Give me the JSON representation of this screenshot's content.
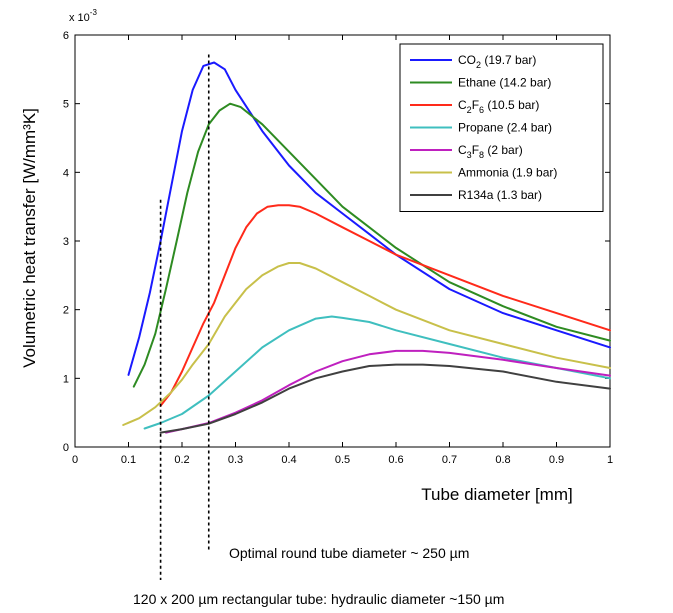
{
  "chart_data": {
    "type": "line",
    "title": "",
    "xlabel": "Tube diameter [mm]",
    "ylabel": "Volumetric heat transfer  [W/mm³K]",
    "y_exponent_label": "x 10",
    "y_exponent_power": "-3",
    "xlim": [
      0,
      1
    ],
    "ylim": [
      0,
      0.006
    ],
    "x_ticks": [
      0,
      0.1,
      0.2,
      0.3,
      0.4,
      0.5,
      0.6,
      0.7,
      0.8,
      0.9,
      1
    ],
    "x_tick_labels": [
      "0",
      "0.1",
      "0.2",
      "0.3",
      "0.4",
      "0.5",
      "0.6",
      "0.7",
      "0.8",
      "0.9",
      "1"
    ],
    "y_ticks": [
      0,
      0.001,
      0.002,
      0.003,
      0.004,
      0.005,
      0.006
    ],
    "y_tick_labels": [
      "0",
      "1",
      "2",
      "3",
      "4",
      "5",
      "6"
    ],
    "grid": false,
    "legend_position": "top-right",
    "series": [
      {
        "name": "CO2 (19.7 bar)",
        "legend_parts": [
          [
            "CO",
            ""
          ],
          [
            "2",
            "sub"
          ],
          [
            " (19.7 bar)",
            ""
          ]
        ],
        "color": "#1a1aff",
        "x": [
          0.1,
          0.12,
          0.14,
          0.16,
          0.18,
          0.2,
          0.22,
          0.24,
          0.26,
          0.28,
          0.3,
          0.35,
          0.4,
          0.45,
          0.5,
          0.55,
          0.6,
          0.7,
          0.8,
          0.9,
          1.0
        ],
        "y": [
          0.00105,
          0.0016,
          0.00225,
          0.003,
          0.0038,
          0.0046,
          0.0052,
          0.00555,
          0.0056,
          0.0055,
          0.0052,
          0.0046,
          0.0041,
          0.0037,
          0.0034,
          0.0031,
          0.0028,
          0.0023,
          0.00195,
          0.0017,
          0.00145
        ]
      },
      {
        "name": "Ethane (14.2 bar)",
        "legend_parts": [
          [
            "Ethane (14.2 bar)",
            ""
          ]
        ],
        "color": "#2e8b22",
        "x": [
          0.11,
          0.13,
          0.15,
          0.17,
          0.19,
          0.21,
          0.23,
          0.25,
          0.27,
          0.29,
          0.31,
          0.35,
          0.4,
          0.45,
          0.5,
          0.55,
          0.6,
          0.7,
          0.8,
          0.9,
          1.0
        ],
        "y": [
          0.00088,
          0.0012,
          0.00165,
          0.0023,
          0.003,
          0.0037,
          0.0043,
          0.0047,
          0.0049,
          0.005,
          0.00495,
          0.0047,
          0.0043,
          0.0039,
          0.0035,
          0.0032,
          0.0029,
          0.0024,
          0.00205,
          0.00175,
          0.00155
        ]
      },
      {
        "name": "C2F6 (10.5 bar)",
        "legend_parts": [
          [
            "C",
            ""
          ],
          [
            "2",
            "sub"
          ],
          [
            "F",
            ""
          ],
          [
            "6",
            "sub"
          ],
          [
            " (10.5 bar)",
            ""
          ]
        ],
        "color": "#ff2a1a",
        "x": [
          0.16,
          0.18,
          0.2,
          0.22,
          0.24,
          0.26,
          0.28,
          0.3,
          0.32,
          0.34,
          0.36,
          0.38,
          0.4,
          0.42,
          0.45,
          0.5,
          0.55,
          0.6,
          0.7,
          0.8,
          0.9,
          1.0
        ],
        "y": [
          0.0006,
          0.0008,
          0.0011,
          0.00145,
          0.0018,
          0.0021,
          0.0025,
          0.0029,
          0.0032,
          0.0034,
          0.0035,
          0.00352,
          0.00352,
          0.0035,
          0.0034,
          0.0032,
          0.003,
          0.0028,
          0.0025,
          0.0022,
          0.00195,
          0.0017
        ]
      },
      {
        "name": "Propane (2.4 bar)",
        "legend_parts": [
          [
            "Propane (2.4 bar)",
            ""
          ]
        ],
        "color": "#3fbfbf",
        "x": [
          0.13,
          0.16,
          0.2,
          0.25,
          0.3,
          0.35,
          0.4,
          0.45,
          0.48,
          0.5,
          0.55,
          0.6,
          0.7,
          0.8,
          0.9,
          1.0
        ],
        "y": [
          0.00027,
          0.00035,
          0.00048,
          0.00075,
          0.0011,
          0.00145,
          0.0017,
          0.00187,
          0.0019,
          0.00188,
          0.00182,
          0.0017,
          0.0015,
          0.0013,
          0.00115,
          0.001
        ]
      },
      {
        "name": "C3F8 (2 bar)",
        "legend_parts": [
          [
            "C",
            ""
          ],
          [
            "3",
            "sub"
          ],
          [
            "F",
            ""
          ],
          [
            "8",
            "sub"
          ],
          [
            " (2 bar)",
            ""
          ]
        ],
        "color": "#bf20bf",
        "x": [
          0.17,
          0.2,
          0.25,
          0.3,
          0.35,
          0.4,
          0.45,
          0.5,
          0.55,
          0.6,
          0.65,
          0.7,
          0.8,
          0.9,
          1.0
        ],
        "y": [
          0.00021,
          0.00026,
          0.00035,
          0.0005,
          0.00068,
          0.0009,
          0.0011,
          0.00125,
          0.00135,
          0.0014,
          0.0014,
          0.00137,
          0.00127,
          0.00115,
          0.00104
        ]
      },
      {
        "name": "Ammonia (1.9 bar)",
        "legend_parts": [
          [
            "Ammonia (1.9 bar)",
            ""
          ]
        ],
        "color": "#c8c04a",
        "x": [
          0.09,
          0.12,
          0.15,
          0.18,
          0.2,
          0.22,
          0.25,
          0.28,
          0.3,
          0.32,
          0.35,
          0.38,
          0.4,
          0.42,
          0.45,
          0.5,
          0.55,
          0.6,
          0.7,
          0.8,
          0.9,
          1.0
        ],
        "y": [
          0.00032,
          0.00042,
          0.00058,
          0.0008,
          0.00098,
          0.0012,
          0.0015,
          0.0019,
          0.0021,
          0.0023,
          0.0025,
          0.00263,
          0.00268,
          0.00268,
          0.0026,
          0.0024,
          0.0022,
          0.002,
          0.0017,
          0.0015,
          0.0013,
          0.00115
        ]
      },
      {
        "name": "R134a (1.3 bar)",
        "legend_parts": [
          [
            "R134a (1.3 bar)",
            ""
          ]
        ],
        "color": "#404040",
        "x": [
          0.16,
          0.2,
          0.25,
          0.3,
          0.35,
          0.4,
          0.45,
          0.5,
          0.55,
          0.6,
          0.65,
          0.7,
          0.8,
          0.9,
          1.0
        ],
        "y": [
          0.00021,
          0.00026,
          0.00034,
          0.00048,
          0.00065,
          0.00085,
          0.001,
          0.0011,
          0.00118,
          0.0012,
          0.0012,
          0.00118,
          0.0011,
          0.00095,
          0.00085
        ]
      }
    ],
    "annotations": [
      {
        "name": "optimal-round-tube-annotation",
        "text": "Optimal round tube diameter ~ 250 µm",
        "x": 0.25,
        "y_top": 0.0056
      },
      {
        "name": "rectangular-tube-annotation",
        "text": "120 x 200 µm rectangular tube: hydraulic diameter ~150 µm",
        "x": 0.16,
        "y_top": 0.0036
      }
    ]
  }
}
